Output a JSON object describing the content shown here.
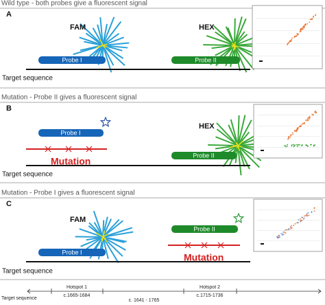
{
  "panels": [
    {
      "header": "Wild type - both probes give a fluorescent signal",
      "label": "A",
      "fam": "FAM",
      "hex": "HEX",
      "probe_1": "Probe I",
      "probe_2": "Probe II",
      "target": "Target sequence"
    },
    {
      "header": "Mutation - Probe II gives a fluorescent signal",
      "label": "B",
      "probe_1": "Probe I",
      "hex": "HEX",
      "probe_2": "Probe II",
      "mutation": "Mutation",
      "target": "Target sequence"
    },
    {
      "header": "Mutation - Probe I gives a fluorescent signal",
      "label": "C",
      "fam": "FAM",
      "probe_2": "Probe II",
      "probe_1": "Probe I",
      "mutation": "Mutation",
      "target": "Target sequence"
    }
  ],
  "footer": {
    "target": "Target sequence",
    "hotspot_1": "Hotspot 1",
    "hotspot_1_range": "c.1665-1684",
    "range": "c. 1641 - 1765",
    "hotspot_2": "Hotspot 2",
    "hotspot_2_range": "c.1715-1736"
  }
}
